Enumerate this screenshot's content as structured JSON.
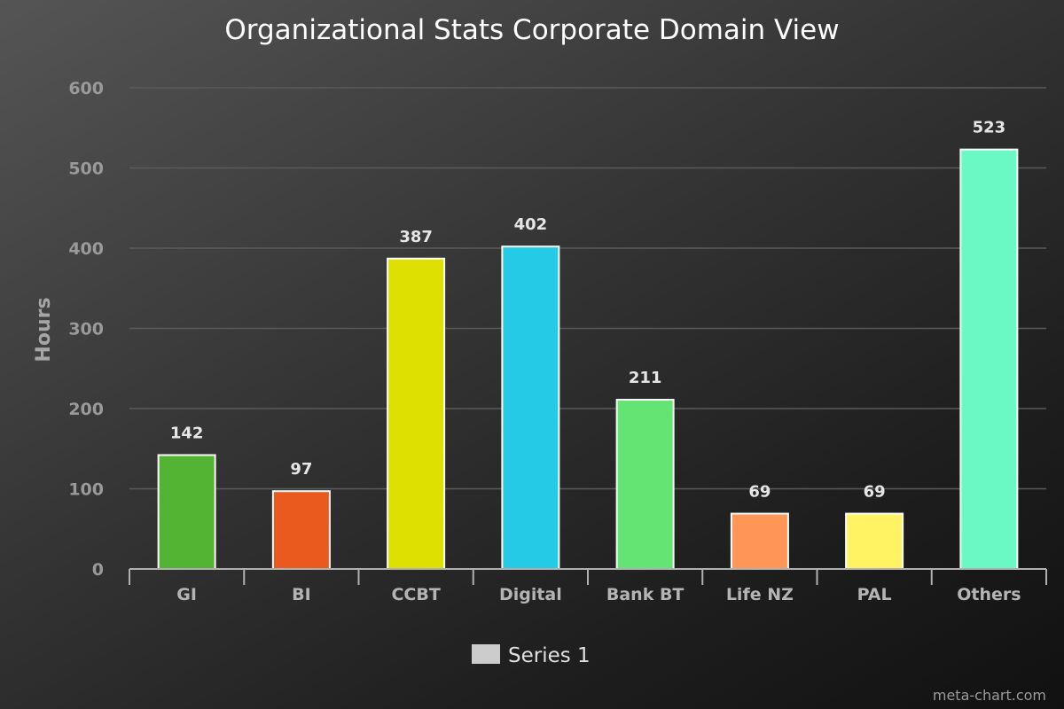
{
  "chart_data": {
    "type": "bar",
    "title": "Organizational Stats Corporate Domain View",
    "xlabel": "",
    "ylabel": "Hours",
    "categories": [
      "GI",
      "BI",
      "CCBT",
      "Digital",
      "Bank BT",
      "Life NZ",
      "PAL",
      "Others"
    ],
    "series": [
      {
        "name": "Series 1",
        "values": [
          142,
          97,
          387,
          402,
          211,
          69,
          69,
          523
        ],
        "colors": [
          "#52b432",
          "#ea5a1e",
          "#dde000",
          "#24cae6",
          "#64e472",
          "#ff9655",
          "#fff263",
          "#6af9c4"
        ]
      }
    ],
    "ylim": [
      0,
      600
    ],
    "yticks": [
      0,
      100,
      200,
      300,
      400,
      500,
      600
    ],
    "grid": true,
    "legend": "bottom-center",
    "legend_color": "#cccccc"
  },
  "credit": "meta-chart.com"
}
